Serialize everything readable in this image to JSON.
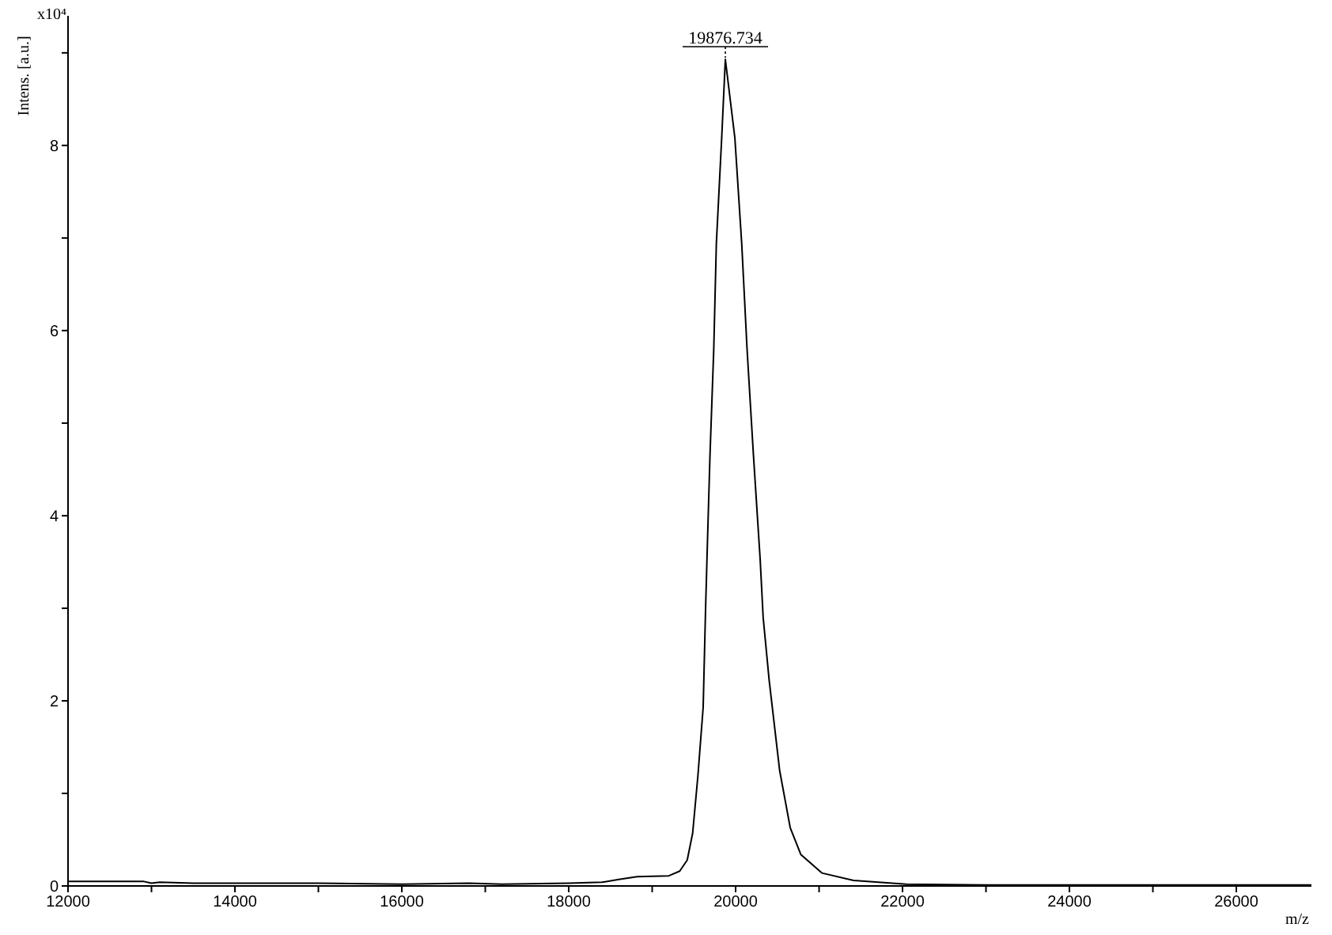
{
  "chart_data": {
    "type": "line",
    "xlabel": "m/z",
    "ylabel": "Intens. [a.u.]",
    "annotations": [
      "x10⁴",
      {
        "text": "19876.734",
        "x": 19876.734,
        "y": 8.93
      }
    ],
    "x": [
      12000,
      12900,
      13000,
      13100,
      13500,
      15000,
      16000,
      16800,
      17200,
      18000,
      18400,
      18600,
      18820,
      19200,
      19330,
      19420,
      19485,
      19548,
      19611,
      19640,
      19665,
      19693,
      19738,
      19769,
      19833,
      19876.734,
      19991,
      20073,
      20137,
      20213,
      20294,
      20330,
      20402,
      20527,
      20654,
      20781,
      21033,
      21412,
      22044,
      23000,
      26900
    ],
    "series": [
      {
        "color": "#000000",
        "values": [
          0.05,
          0.05,
          0.03,
          0.04,
          0.03,
          0.03,
          0.02,
          0.03,
          0.02,
          0.03,
          0.04,
          0.07,
          0.1,
          0.11,
          0.16,
          0.28,
          0.57,
          1.19,
          1.93,
          3.0,
          3.8,
          4.66,
          5.8,
          6.94,
          8.08,
          8.93,
          8.08,
          6.94,
          5.8,
          4.66,
          3.53,
          2.9,
          2.22,
          1.25,
          0.63,
          0.34,
          0.14,
          0.06,
          0.02,
          0.01,
          0.01
        ]
      }
    ],
    "xlim": [
      12000,
      26900
    ],
    "ylim": [
      0,
      9.4
    ],
    "xticks": [
      12000,
      {
        "value": 13000,
        "label": null
      },
      14000,
      {
        "value": 15000,
        "label": null
      },
      16000,
      {
        "value": 17000,
        "label": null
      },
      18000,
      {
        "value": 19000,
        "label": null
      },
      20000,
      {
        "value": 21000,
        "label": null
      },
      22000,
      {
        "value": 23000,
        "label": null
      },
      24000,
      {
        "value": 25000,
        "label": null
      },
      26000
    ],
    "yticks": [
      0,
      {
        "value": 1,
        "label": null
      },
      2,
      {
        "value": 3,
        "label": null
      },
      4,
      {
        "value": 5,
        "label": null
      },
      6,
      {
        "value": 7,
        "label": null
      },
      8,
      {
        "value": 9,
        "label": null
      }
    ],
    "line_style": "solid"
  }
}
